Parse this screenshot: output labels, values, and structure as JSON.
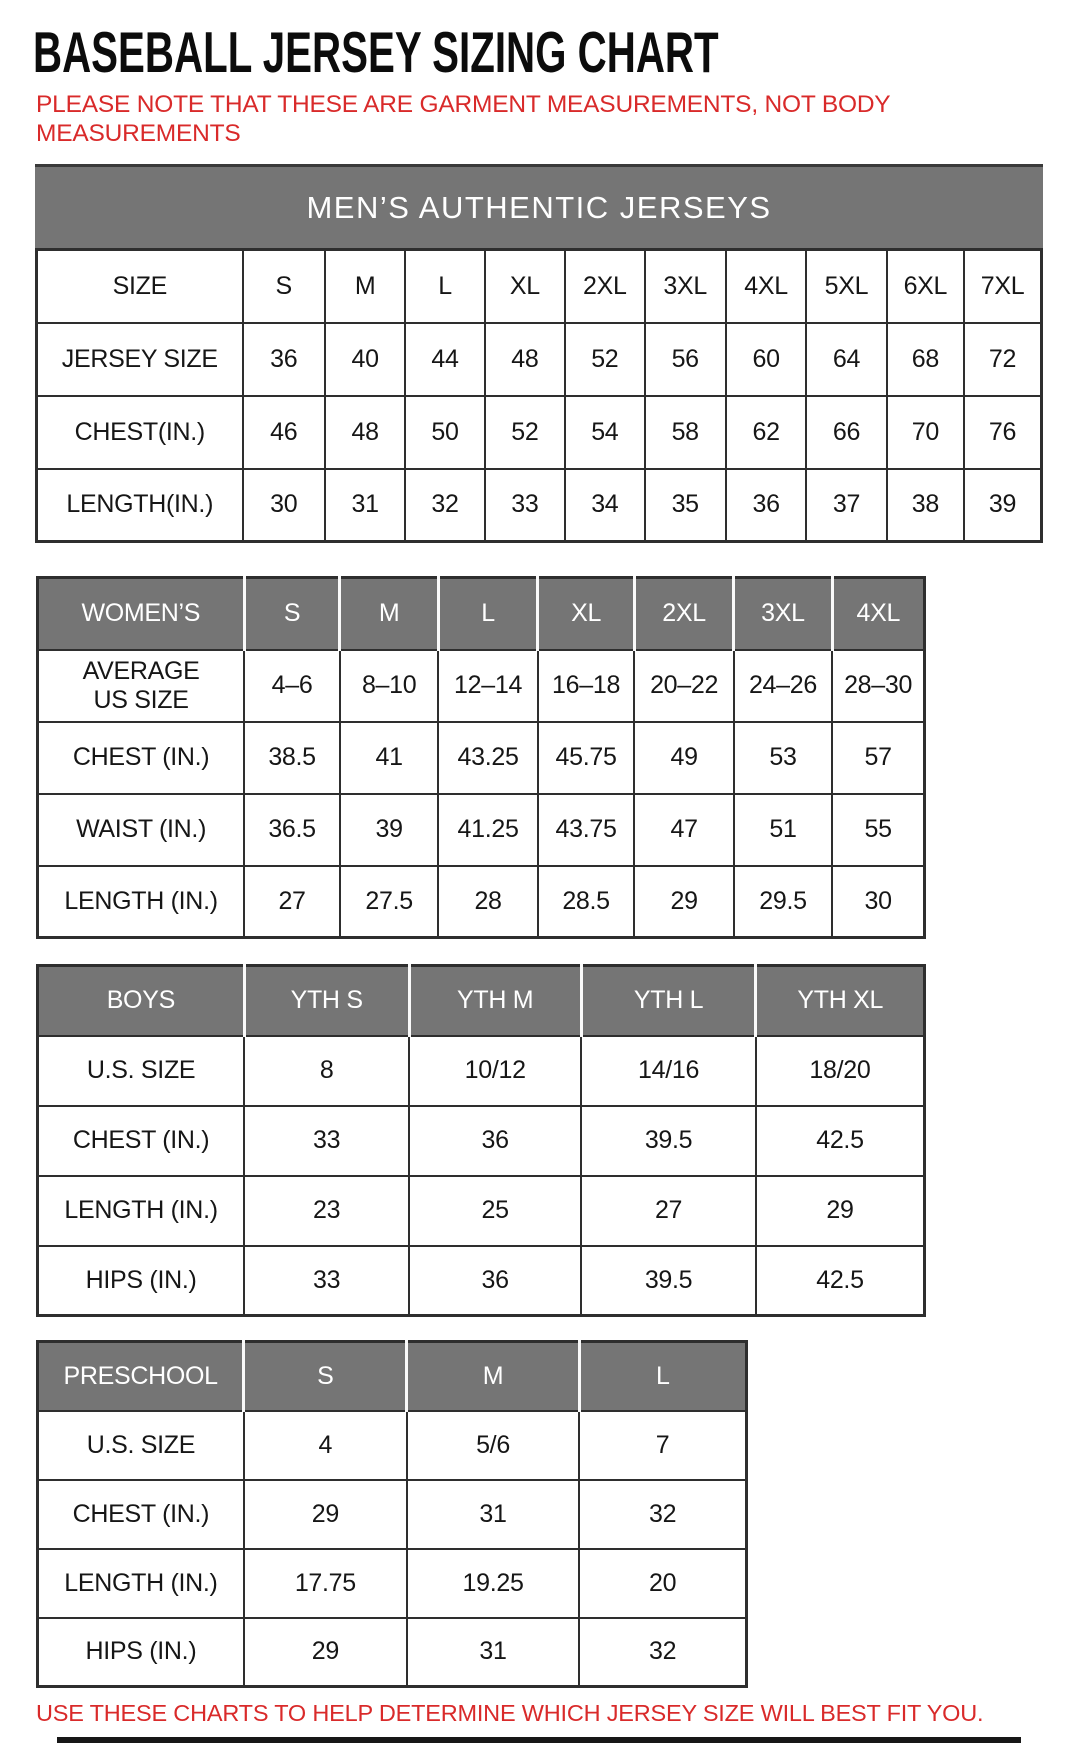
{
  "page": {
    "title": "BASEBALL JERSEY SIZING CHART",
    "note": "PLEASE NOTE THAT THESE ARE GARMENT MEASUREMENTS, NOT BODY MEASUREMENTS",
    "footer": "USE THESE CHARTS TO HELP DETERMINE WHICH JERSEY SIZE WILL BEST FIT YOU."
  },
  "colors": {
    "accent_red": "#d92a2a",
    "header_gray": "#757575",
    "header_text": "#ffffff",
    "border": "#2e2e2e"
  },
  "tables": {
    "mens": {
      "banner": "MEN’S AUTHENTIC JERSEYS",
      "columns": [
        "SIZE",
        "S",
        "M",
        "L",
        "XL",
        "2XL",
        "3XL",
        "4XL",
        "5XL",
        "6XL",
        "7XL"
      ],
      "rows": [
        [
          "JERSEY SIZE",
          "36",
          "40",
          "44",
          "48",
          "52",
          "56",
          "60",
          "64",
          "68",
          "72"
        ],
        [
          "CHEST(IN.)",
          "46",
          "48",
          "50",
          "52",
          "54",
          "58",
          "62",
          "66",
          "70",
          "76"
        ],
        [
          "LENGTH(IN.)",
          "30",
          "31",
          "32",
          "33",
          "34",
          "35",
          "36",
          "37",
          "38",
          "39"
        ]
      ]
    },
    "womens": {
      "columns": [
        "WOMEN’S",
        "S",
        "M",
        "L",
        "XL",
        "2XL",
        "3XL",
        "4XL"
      ],
      "rows": [
        [
          "AVERAGE\nUS SIZE",
          "4–6",
          "8–10",
          "12–14",
          "16–18",
          "20–22",
          "24–26",
          "28–30"
        ],
        [
          "CHEST (IN.)",
          "38.5",
          "41",
          "43.25",
          "45.75",
          "49",
          "53",
          "57"
        ],
        [
          "WAIST (IN.)",
          "36.5",
          "39",
          "41.25",
          "43.75",
          "47",
          "51",
          "55"
        ],
        [
          "LENGTH (IN.)",
          "27",
          "27.5",
          "28",
          "28.5",
          "29",
          "29.5",
          "30"
        ]
      ]
    },
    "boys": {
      "columns": [
        "BOYS",
        "YTH S",
        "YTH M",
        "YTH L",
        "YTH XL"
      ],
      "rows": [
        [
          "U.S. SIZE",
          "8",
          "10/12",
          "14/16",
          "18/20"
        ],
        [
          "CHEST (IN.)",
          "33",
          "36",
          "39.5",
          "42.5"
        ],
        [
          "LENGTH (IN.)",
          "23",
          "25",
          "27",
          "29"
        ],
        [
          "HIPS (IN.)",
          "33",
          "36",
          "39.5",
          "42.5"
        ]
      ]
    },
    "preschool": {
      "columns": [
        "PRESCHOOL",
        "S",
        "M",
        "L"
      ],
      "rows": [
        [
          "U.S. SIZE",
          "4",
          "5/6",
          "7"
        ],
        [
          "CHEST (IN.)",
          "29",
          "31",
          "32"
        ],
        [
          "LENGTH (IN.)",
          "17.75",
          "19.25",
          "20"
        ],
        [
          "HIPS (IN.)",
          "29",
          "31",
          "32"
        ]
      ]
    }
  }
}
